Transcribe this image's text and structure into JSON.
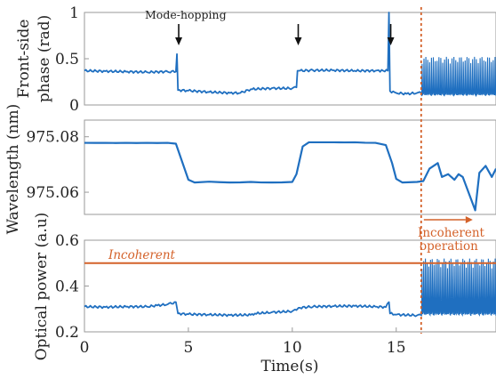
{
  "colors": {
    "series": "#1f6fc0",
    "accent": "#d4622a",
    "axis": "#9a9a9a",
    "text": "#222222"
  },
  "x_axis": {
    "label": "Time(s)",
    "range": [
      0,
      19.8
    ],
    "ticks": [
      "0",
      "5",
      "10",
      "15"
    ]
  },
  "annotations": {
    "mode_hopping": "Mode-hopping",
    "mode_hop_times": [
      4.45,
      10.2,
      14.65
    ],
    "incoherent": "Incoherent",
    "incoherent_operation_line1": "Incoherent",
    "incoherent_operation_line2": "operation",
    "transition_time": 16.2
  },
  "chart_data": [
    {
      "type": "line",
      "ylabel_line1": "Front-side",
      "ylabel_line2": "phase (rad)",
      "ylim": [
        0,
        1
      ],
      "yticks": [
        "0",
        "0.5",
        "1"
      ],
      "ytick_values": [
        0,
        0.5,
        1
      ],
      "series": [
        {
          "x": [
            0,
            1,
            2,
            3,
            4,
            4.4,
            4.45,
            4.5,
            5,
            6,
            7,
            7.5,
            8,
            9,
            10,
            10.2,
            10.25,
            10.3,
            11,
            12,
            13,
            14,
            14.6,
            14.65,
            14.7,
            15,
            15.5,
            16,
            16.2
          ],
          "y": [
            0.37,
            0.365,
            0.36,
            0.355,
            0.36,
            0.36,
            0.55,
            0.16,
            0.155,
            0.14,
            0.13,
            0.13,
            0.17,
            0.18,
            0.18,
            0.19,
            0.37,
            0.37,
            0.375,
            0.375,
            0.37,
            0.37,
            0.37,
            1.0,
            0.15,
            0.13,
            0.12,
            0.13,
            0.13
          ]
        }
      ],
      "incoherent_segment": {
        "x_start": 16.2,
        "x_end": 19.8,
        "low": 0.1,
        "high": 0.52,
        "spike_count": 40
      }
    },
    {
      "type": "line",
      "ylabel": "Wavelength (nm)",
      "ylim": [
        975.052,
        975.086
      ],
      "yticks": [
        "975.08",
        "975.06"
      ],
      "ytick_values": [
        975.08,
        975.06
      ],
      "series": [
        {
          "x": [
            0,
            1,
            2,
            3,
            4,
            4.4,
            4.7,
            5.0,
            5.3,
            6,
            7,
            8,
            9,
            10,
            10.2,
            10.5,
            10.8,
            11,
            12,
            13,
            14,
            14.5,
            14.8,
            15,
            15.3,
            16,
            16.3,
            16.6,
            17,
            17.2,
            17.5,
            17.8,
            18,
            18.2,
            18.5,
            18.8,
            19,
            19.3,
            19.6,
            19.8
          ],
          "y": [
            975.0778,
            975.0778,
            975.0778,
            975.0778,
            975.0778,
            975.0775,
            975.071,
            975.0645,
            975.0635,
            975.0638,
            975.0635,
            975.0637,
            975.0635,
            975.0637,
            975.0665,
            975.0765,
            975.078,
            975.078,
            975.078,
            975.078,
            975.0778,
            975.077,
            975.0705,
            975.0648,
            975.0635,
            975.0637,
            975.064,
            975.0685,
            975.0705,
            975.0655,
            975.0665,
            975.0645,
            975.0665,
            975.0655,
            975.0595,
            975.0535,
            975.067,
            975.0695,
            975.0655,
            975.0685
          ]
        }
      ]
    },
    {
      "type": "line",
      "ylabel": "Optical power (a.u)",
      "ylim": [
        0.2,
        0.6
      ],
      "yticks": [
        "0.6",
        "0.4",
        "0.2"
      ],
      "ytick_values": [
        0.6,
        0.4,
        0.2
      ],
      "series": [
        {
          "x": [
            0,
            1,
            2,
            3,
            3.5,
            4,
            4.4,
            4.5,
            5,
            6,
            7,
            8,
            8.2,
            9,
            10,
            10.2,
            10.3,
            11,
            12,
            13,
            14,
            14.5,
            14.65,
            14.7,
            15,
            16,
            16.2
          ],
          "y": [
            0.31,
            0.308,
            0.31,
            0.31,
            0.315,
            0.32,
            0.33,
            0.28,
            0.277,
            0.275,
            0.273,
            0.274,
            0.28,
            0.285,
            0.29,
            0.295,
            0.305,
            0.31,
            0.312,
            0.313,
            0.31,
            0.308,
            0.33,
            0.28,
            0.275,
            0.272,
            0.272
          ]
        }
      ],
      "incoherent_segment": {
        "x_start": 16.2,
        "x_end": 19.8,
        "low": 0.27,
        "high": 0.52,
        "spike_count": 44
      },
      "reference_line": {
        "y": 0.5,
        "label": "Incoherent"
      }
    }
  ]
}
